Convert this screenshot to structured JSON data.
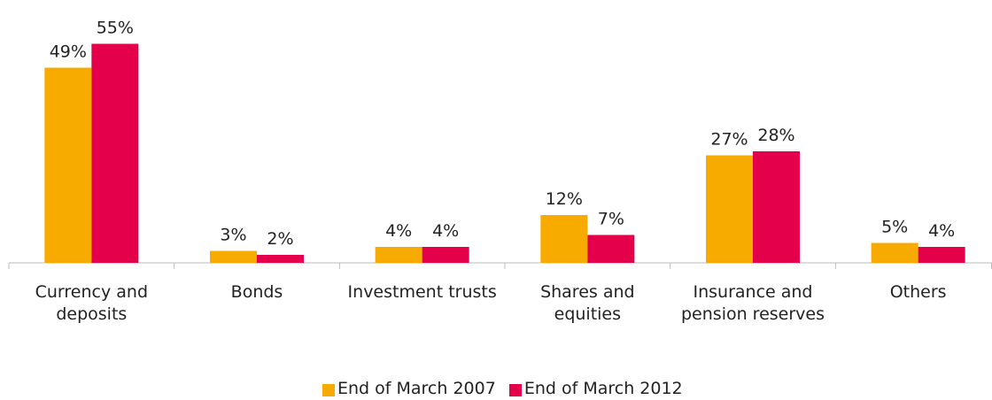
{
  "chart_data": {
    "type": "bar",
    "categories": [
      "Currency and deposits",
      "Bonds",
      "Investment trusts",
      "Shares and equities",
      "Insurance and pension reserves",
      "Others"
    ],
    "series": [
      {
        "name": "End of March 2007",
        "color": "#f7ab00",
        "values": [
          49,
          3,
          4,
          12,
          27,
          5
        ],
        "value_labels": [
          "49%",
          "3%",
          "4%",
          "12%",
          "27%",
          "5%"
        ]
      },
      {
        "name": "End of March 2012",
        "color": "#e4004a",
        "values": [
          55,
          2,
          4,
          7,
          28,
          4
        ],
        "value_labels": [
          "55%",
          "2%",
          "4%",
          "7%",
          "28%",
          "4%"
        ]
      }
    ],
    "ylim": [
      0,
      60
    ],
    "legend": "bottom"
  }
}
